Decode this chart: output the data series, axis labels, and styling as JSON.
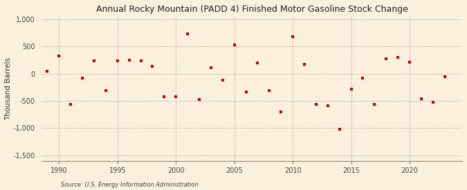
{
  "title": "Annual Rocky Mountain (PADD 4) Finished Motor Gasoline Stock Change",
  "ylabel": "Thousand Barrels",
  "source": "Source: U.S. Energy Information Administration",
  "background_color": "#faf0dc",
  "plot_bg_color": "#faf0dc",
  "marker_color": "#cc0000",
  "xlim": [
    1988.5,
    2024.5
  ],
  "ylim": [
    -1600,
    1050
  ],
  "yticks": [
    -1500,
    -1000,
    -500,
    0,
    500,
    1000
  ],
  "ytick_labels": [
    "-1,500",
    "-1,000",
    "-500",
    "0",
    "500",
    "1,000"
  ],
  "xticks": [
    1990,
    1995,
    2000,
    2005,
    2010,
    2015,
    2020
  ],
  "years": [
    1989,
    1990,
    1991,
    1992,
    1993,
    1994,
    1995,
    1996,
    1997,
    1998,
    1999,
    2000,
    2001,
    2002,
    2003,
    2004,
    2005,
    2006,
    2007,
    2008,
    2009,
    2010,
    2011,
    2012,
    2013,
    2014,
    2015,
    2016,
    2017,
    2018,
    2019,
    2020,
    2021,
    2022,
    2023
  ],
  "values": [
    50,
    320,
    -560,
    -80,
    240,
    -310,
    230,
    250,
    230,
    130,
    -430,
    -430,
    730,
    -480,
    110,
    -120,
    530,
    -340,
    200,
    -310,
    -700,
    680,
    170,
    -570,
    -590,
    -1020,
    -280,
    -80,
    -560,
    280,
    300,
    210,
    -460,
    -530,
    -60
  ]
}
